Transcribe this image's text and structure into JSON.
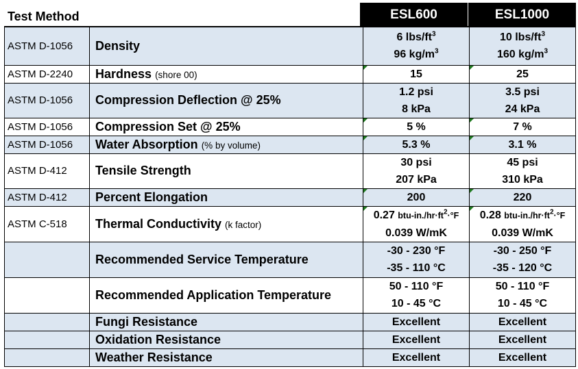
{
  "header": {
    "test_method": "Test Method",
    "product_a": "ESL600",
    "product_b": "ESL1000"
  },
  "rows": [
    {
      "method": "ASTM D-1056",
      "property": "Density",
      "note": "",
      "a1": "6 lbs/ft",
      "a1_sup": "3",
      "a2": "96 kg/m",
      "a2_sup": "3",
      "b1": "10 lbs/ft",
      "b1_sup": "3",
      "b2": "160 kg/m",
      "b2_sup": "3"
    },
    {
      "method": "ASTM D-2240",
      "property": "Hardness",
      "note": "(shore 00)",
      "a1": "15",
      "b1": "25"
    },
    {
      "method": "ASTM D-1056",
      "property": "Compression Deflection @ 25%",
      "note": "",
      "a1": "1.2 psi",
      "a2": "8 kPa",
      "b1": "3.5 psi",
      "b2": "24 kPa"
    },
    {
      "method": "ASTM D-1056",
      "property": "Compression Set @ 25%",
      "note": "",
      "a1": "5 %",
      "b1": "7 %"
    },
    {
      "method": "ASTM D-1056",
      "property": "Water Absorption",
      "note": "(% by volume)",
      "a1": "5.3 %",
      "b1": "3.1 %"
    },
    {
      "method": "ASTM D-412",
      "property": "Tensile Strength",
      "note": "",
      "a1": "30 psi",
      "a2": "207 kPa",
      "b1": "45 psi",
      "b2": "310 kPa"
    },
    {
      "method": "ASTM D-412",
      "property": "Percent Elongation",
      "note": "",
      "a1": "200",
      "b1": "220"
    },
    {
      "method": "ASTM C-518",
      "property": "Thermal Conductivity",
      "note": "(k factor)",
      "a1_num": "0.27",
      "a1_unit_pre": "btu-in./hr·ft",
      "a1_unit_sup": "2",
      "a1_unit_post": "·°F",
      "a2": "0.039 W/mK",
      "b1_num": "0.28",
      "b1_unit_pre": "btu-in./hr·ft",
      "b1_unit_sup": "2",
      "b1_unit_post": "·°F",
      "b2": "0.039 W/mK"
    },
    {
      "method": "",
      "property": "Recommended Service Temperature",
      "note": "",
      "a1": "-30 - 230 °F",
      "a2": "-35 - 110 °C",
      "b1": "-30 - 250 °F",
      "b2": "-35 - 120 °C"
    },
    {
      "method": "",
      "property": "Recommended Application Temperature",
      "note": "",
      "a1": "50 - 110 °F",
      "a2": "10 - 45 °C",
      "b1": "50 - 110 °F",
      "b2": "10 - 45 °C"
    },
    {
      "method": "",
      "property": "Fungi Resistance",
      "note": "",
      "a1": "Excellent",
      "b1": "Excellent"
    },
    {
      "method": "",
      "property": "Oxidation Resistance",
      "note": "",
      "a1": "Excellent",
      "b1": "Excellent"
    },
    {
      "method": "",
      "property": "Weather Resistance",
      "note": "",
      "a1": "Excellent",
      "b1": "Excellent"
    }
  ],
  "colors": {
    "shade": "#dce6f1",
    "header_bg": "#000000",
    "header_fg": "#ffffff",
    "cell_marker": "#1f7a1f"
  }
}
